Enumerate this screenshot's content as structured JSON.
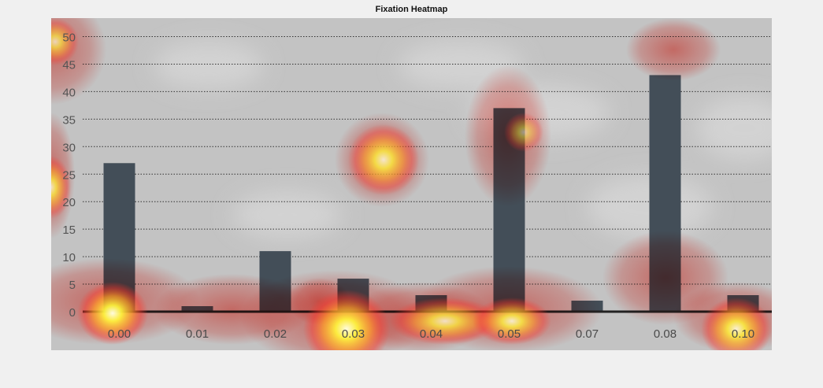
{
  "title": "Fixation Heatmap",
  "chart_data": {
    "type": "bar",
    "categories": [
      "0.00",
      "0.01",
      "0.02",
      "0.03",
      "0.04",
      "0.05",
      "0.07",
      "0.08",
      "0.10"
    ],
    "values": [
      27,
      1,
      11,
      6,
      3,
      37,
      2,
      43,
      3
    ],
    "yticks": [
      "0",
      "5",
      "10",
      "15",
      "20",
      "25",
      "30",
      "35",
      "40",
      "45",
      "50"
    ],
    "ylim": [
      0,
      50
    ],
    "grid": true,
    "colors": {
      "bar": "#434e58",
      "background": "#c3c3c3",
      "axis": "#222222",
      "tick_label": "#545454",
      "heat_red": "#ff3b2f",
      "heat_yellow": "#fff23c"
    },
    "heatmap_overlay": true
  }
}
